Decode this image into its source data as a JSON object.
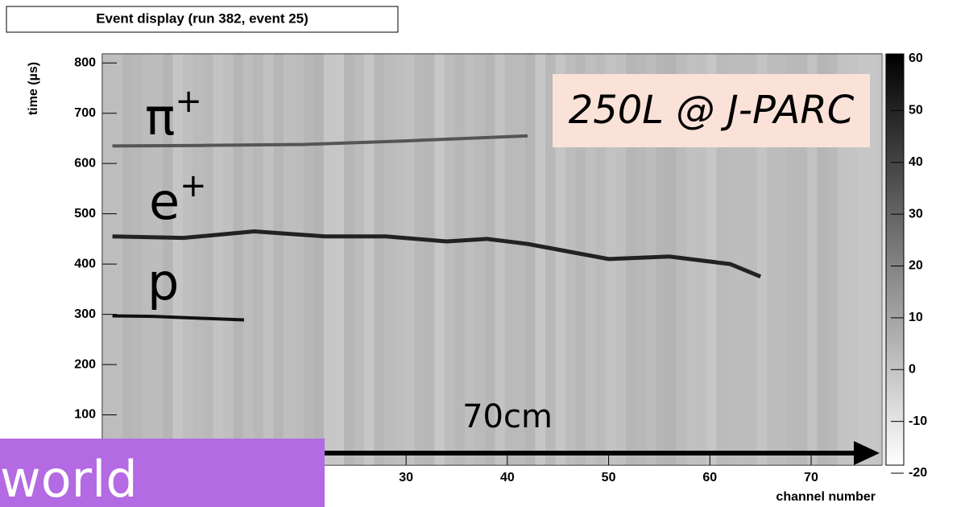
{
  "chart_data": {
    "type": "line",
    "title": "Event display (run 382, event 25)",
    "xlabel": "channel number",
    "ylabel": "time (µs)",
    "xlim": [
      0,
      77
    ],
    "xticks": [
      30,
      40,
      50,
      60,
      70
    ],
    "ylim": [
      0,
      818
    ],
    "yticks": [
      100,
      200,
      300,
      400,
      500,
      600,
      700,
      800
    ],
    "zlim": [
      -20,
      60
    ],
    "zticks": [
      -20,
      -10,
      0,
      10,
      20,
      30,
      40,
      50,
      60
    ],
    "series": [
      {
        "name": "π+",
        "color": "#555555",
        "x": [
          1,
          10,
          20,
          30,
          42
        ],
        "values": [
          635,
          636,
          638,
          645,
          655
        ]
      },
      {
        "name": "e+",
        "color": "#222222",
        "x": [
          1,
          8,
          15,
          22,
          28,
          34,
          38,
          42,
          46,
          50,
          56,
          62,
          65
        ],
        "values": [
          455,
          452,
          465,
          455,
          455,
          445,
          450,
          440,
          425,
          410,
          415,
          400,
          375
        ]
      },
      {
        "name": "p",
        "color": "#111111",
        "x": [
          1,
          5,
          10,
          14
        ],
        "values": [
          297,
          296,
          292,
          289
        ]
      }
    ],
    "annotations": {
      "box": "250L @ J-PARC",
      "scale": "70cm",
      "overlay": "world"
    }
  }
}
